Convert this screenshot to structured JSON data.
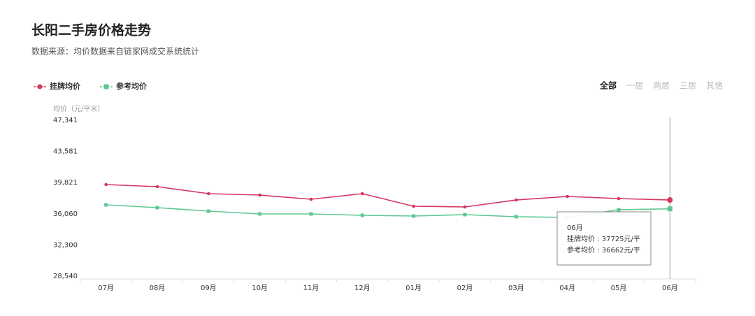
{
  "chart_data": {
    "type": "line",
    "title": "长阳二手房价格走势",
    "subtitle": "数据来源：均价数据来自链家网成交系统统计",
    "y_label": "均价（元/平米）",
    "tabs": [
      "全部",
      "一居",
      "两居",
      "三居",
      "其他"
    ],
    "active_tab": 0,
    "categories": [
      "07月",
      "08月",
      "09月",
      "10月",
      "11月",
      "12月",
      "01月",
      "02月",
      "03月",
      "04月",
      "05月",
      "06月"
    ],
    "series": [
      {
        "name": "挂牌均价",
        "color": "#d6365f",
        "marker": "circle",
        "values": [
          39585,
          39332,
          38488,
          38320,
          37814,
          38488,
          36971,
          36887,
          37725,
          38151,
          37898,
          37725
        ]
      },
      {
        "name": "参考均价",
        "color": "#5ec794",
        "marker": "square",
        "values": [
          37140,
          36802,
          36381,
          36044,
          36044,
          35875,
          35791,
          35959,
          35706,
          35622,
          36549,
          36662
        ]
      }
    ],
    "ylim": [
      28540,
      47341
    ],
    "yticks": [
      {
        "value": 28540,
        "label": "28,540"
      },
      {
        "value": 32300,
        "label": "32,300"
      },
      {
        "value": 36060,
        "label": "36,060"
      },
      {
        "value": 39821,
        "label": "39,821"
      },
      {
        "value": 43581,
        "label": "43,581"
      },
      {
        "value": 47341,
        "label": "47,341"
      }
    ],
    "highlight_index": 11,
    "tooltip": {
      "title": "06月",
      "lines": [
        "挂牌均价 : 37725元/平",
        "参考均价 : 36662元/平"
      ]
    }
  }
}
